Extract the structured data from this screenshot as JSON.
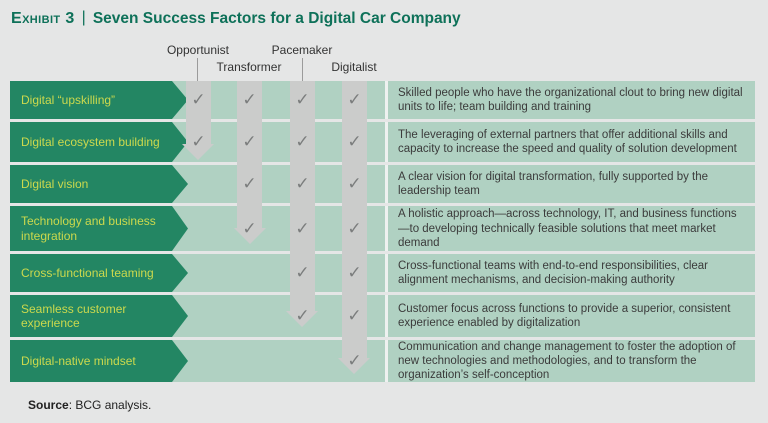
{
  "header": {
    "exhibit_label": "Exhibit 3",
    "separator": "|",
    "title": "Seven Success Factors for a Digital Car Company"
  },
  "columns": [
    {
      "label": "Opportunist"
    },
    {
      "label": "Transformer"
    },
    {
      "label": "Pacemaker"
    },
    {
      "label": "Digitalist"
    }
  ],
  "rows": [
    {
      "label": "Digital “upskilling”",
      "checks": [
        "✓",
        "✓",
        "✓",
        "✓"
      ],
      "description": "Skilled people who have the organizational clout to bring new digital units to life; team building and training"
    },
    {
      "label": "Digital ecosystem building",
      "checks": [
        "✓",
        "✓",
        "✓",
        "✓"
      ],
      "description": "The leveraging of external partners that offer additional skills and capacity to increase the speed and quality of solution development"
    },
    {
      "label": "Digital vision",
      "checks": [
        "",
        "✓",
        "✓",
        "✓"
      ],
      "description": "A clear vision for digital transformation, fully supported by the leadership team"
    },
    {
      "label": "Technology and business integration",
      "checks": [
        "",
        "✓",
        "✓",
        "✓"
      ],
      "description": "A holistic approach—across technology, IT, and business functions—to developing technically feasible solutions that meet market demand"
    },
    {
      "label": "Cross-functional teaming",
      "checks": [
        "",
        "",
        "✓",
        "✓"
      ],
      "description": "Cross-functional teams with end-to-end responsibilities, clear alignment mechanisms, and decision-making authority"
    },
    {
      "label": "Seamless customer experience",
      "checks": [
        "",
        "",
        "✓",
        "✓"
      ],
      "description": "Customer focus across functions to provide a superior, consistent experience enabled by digitalization"
    },
    {
      "label": "Digital-native mindset",
      "checks": [
        "",
        "",
        "",
        "✓"
      ],
      "description": "Communication and change management to foster the adoption of new technologies and methodologies, and to transform the organization’s self-conception"
    }
  ],
  "source": {
    "label": "Source",
    "text": ": BCG analysis."
  },
  "colors": {
    "page_background": "#e5e6e6",
    "title_green": "#0e7159",
    "arrow_green": "#238663",
    "arrow_label_yellow": "#ccd94d",
    "row_band_green": "#b0d1c2",
    "column_bar_gray": "#cbcccb",
    "checkmark_gray": "#7b7d7d",
    "description_text": "#3b3b3b"
  }
}
